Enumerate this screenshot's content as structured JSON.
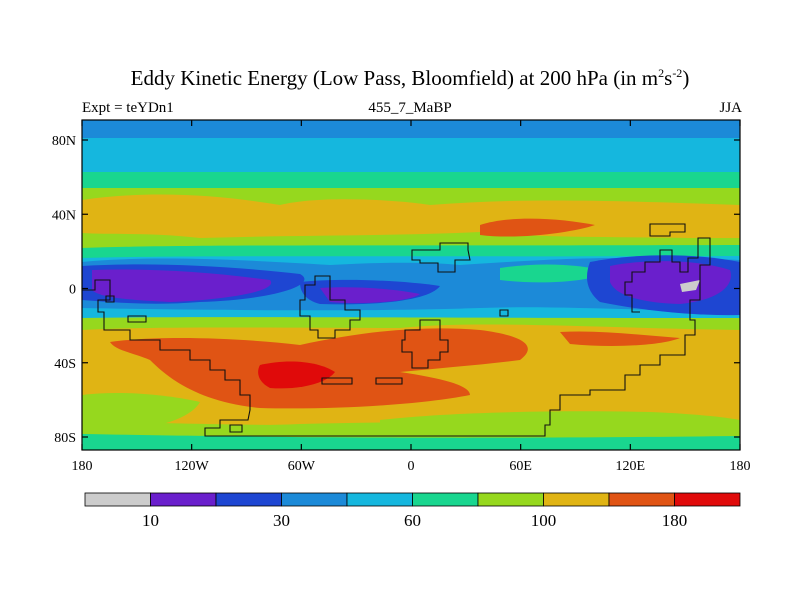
{
  "title": {
    "main": "Eddy Kinetic Energy (Low Pass, Bloomfield) at 200 hPa (in m",
    "sup1": "2",
    "mid": "s",
    "sup2": "-2",
    "end": ")"
  },
  "subtitle": {
    "left": "Expt = teYDn1",
    "center": "455_7_MaBP",
    "right": "JJA"
  },
  "axes": {
    "y_ticks": [
      "80N",
      "40N",
      "0",
      "40S",
      "80S"
    ],
    "x_ticks": [
      "180",
      "120W",
      "60W",
      "0",
      "60E",
      "120E",
      "180"
    ]
  },
  "colorbar": {
    "colors": [
      "#cccccc",
      "#6a1fcc",
      "#1e46d2",
      "#1c8ad8",
      "#15b7de",
      "#19d68f",
      "#96d81e",
      "#e0b414",
      "#e05414",
      "#e00a0a"
    ],
    "labels": [
      "10",
      "30",
      "60",
      "100",
      "180"
    ]
  }
}
